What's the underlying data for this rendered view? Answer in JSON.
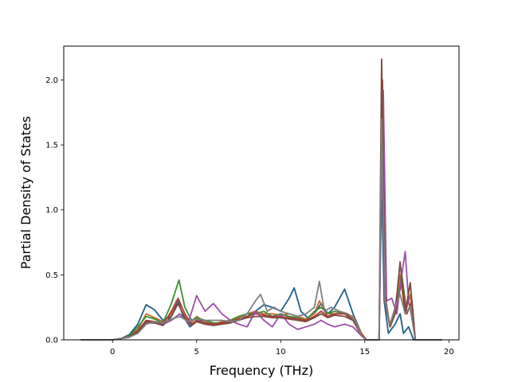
{
  "chart_data": {
    "type": "line",
    "title": "",
    "xlabel": "Frequency (THz)",
    "ylabel": "Partial Density of States",
    "xlim": [
      -2.9,
      20.6
    ],
    "ylim": [
      0,
      2.26
    ],
    "xticks": [
      0,
      5,
      10,
      15,
      20
    ],
    "xtick_labels": [
      "0",
      "5",
      "10",
      "15",
      "20"
    ],
    "yticks": [
      0.0,
      0.5,
      1.0,
      1.5,
      2.0
    ],
    "ytick_labels": [
      "0.0",
      "0.5",
      "1.0",
      "1.5",
      "2.0"
    ],
    "grid": false,
    "legend": "none",
    "series": [
      {
        "color": "#1f5f8b",
        "points": [
          [
            -1.9,
            0
          ],
          [
            0,
            0
          ],
          [
            0.5,
            0.01
          ],
          [
            1,
            0.04
          ],
          [
            1.5,
            0.12
          ],
          [
            2,
            0.27
          ],
          [
            2.5,
            0.23
          ],
          [
            3,
            0.15
          ],
          [
            3.5,
            0.18
          ],
          [
            3.9,
            0.3
          ],
          [
            4.2,
            0.18
          ],
          [
            4.6,
            0.1
          ],
          [
            5,
            0.14
          ],
          [
            5.5,
            0.15
          ],
          [
            6,
            0.13
          ],
          [
            6.5,
            0.12
          ],
          [
            7,
            0.14
          ],
          [
            7.5,
            0.16
          ],
          [
            8,
            0.18
          ],
          [
            8.5,
            0.22
          ],
          [
            9,
            0.27
          ],
          [
            9.5,
            0.25
          ],
          [
            10,
            0.22
          ],
          [
            10.5,
            0.32
          ],
          [
            10.8,
            0.4
          ],
          [
            11.2,
            0.22
          ],
          [
            11.6,
            0.17
          ],
          [
            12,
            0.2
          ],
          [
            12.4,
            0.28
          ],
          [
            12.8,
            0.2
          ],
          [
            13.2,
            0.25
          ],
          [
            13.8,
            0.39
          ],
          [
            14.3,
            0.2
          ],
          [
            14.8,
            0.05
          ],
          [
            15.1,
            0
          ],
          [
            15.85,
            0
          ],
          [
            16.0,
            1.25
          ],
          [
            16.15,
            0.3
          ],
          [
            16.4,
            0.05
          ],
          [
            16.8,
            0.12
          ],
          [
            17.1,
            0.2
          ],
          [
            17.3,
            0.05
          ],
          [
            17.6,
            0.1
          ],
          [
            17.9,
            0
          ],
          [
            19.6,
            0
          ]
        ]
      },
      {
        "color": "#c66b2a",
        "points": [
          [
            -1.9,
            0
          ],
          [
            0,
            0
          ],
          [
            0.5,
            0.01
          ],
          [
            1,
            0.03
          ],
          [
            1.5,
            0.08
          ],
          [
            2,
            0.2
          ],
          [
            2.5,
            0.17
          ],
          [
            3,
            0.14
          ],
          [
            3.5,
            0.2
          ],
          [
            3.8,
            0.3
          ],
          [
            4.2,
            0.2
          ],
          [
            4.6,
            0.12
          ],
          [
            5,
            0.18
          ],
          [
            5.5,
            0.14
          ],
          [
            6,
            0.12
          ],
          [
            6.5,
            0.14
          ],
          [
            7,
            0.15
          ],
          [
            7.5,
            0.17
          ],
          [
            8,
            0.2
          ],
          [
            8.5,
            0.22
          ],
          [
            9,
            0.2
          ],
          [
            9.5,
            0.2
          ],
          [
            10,
            0.19
          ],
          [
            10.5,
            0.2
          ],
          [
            11,
            0.18
          ],
          [
            11.5,
            0.16
          ],
          [
            12,
            0.2
          ],
          [
            12.3,
            0.3
          ],
          [
            12.7,
            0.2
          ],
          [
            13.2,
            0.2
          ],
          [
            13.8,
            0.2
          ],
          [
            14.3,
            0.18
          ],
          [
            14.8,
            0.05
          ],
          [
            15.1,
            0
          ],
          [
            15.85,
            0
          ],
          [
            16.02,
            1.6
          ],
          [
            16.2,
            0.3
          ],
          [
            16.5,
            0.1
          ],
          [
            16.8,
            0.25
          ],
          [
            17.1,
            0.5
          ],
          [
            17.4,
            0.2
          ],
          [
            17.7,
            0.35
          ],
          [
            18,
            0
          ],
          [
            19.6,
            0
          ]
        ]
      },
      {
        "color": "#3a8f2e",
        "points": [
          [
            -1.9,
            0
          ],
          [
            0,
            0
          ],
          [
            0.5,
            0.01
          ],
          [
            1,
            0.03
          ],
          [
            1.5,
            0.1
          ],
          [
            2,
            0.18
          ],
          [
            2.5,
            0.16
          ],
          [
            3,
            0.13
          ],
          [
            3.5,
            0.28
          ],
          [
            3.95,
            0.46
          ],
          [
            4.3,
            0.25
          ],
          [
            4.7,
            0.15
          ],
          [
            5,
            0.17
          ],
          [
            5.5,
            0.15
          ],
          [
            6,
            0.13
          ],
          [
            6.5,
            0.13
          ],
          [
            7,
            0.15
          ],
          [
            7.5,
            0.18
          ],
          [
            8,
            0.2
          ],
          [
            8.5,
            0.2
          ],
          [
            9,
            0.22
          ],
          [
            9.5,
            0.18
          ],
          [
            10,
            0.2
          ],
          [
            10.5,
            0.18
          ],
          [
            11,
            0.17
          ],
          [
            11.5,
            0.15
          ],
          [
            12,
            0.22
          ],
          [
            12.4,
            0.25
          ],
          [
            12.8,
            0.2
          ],
          [
            13.2,
            0.22
          ],
          [
            13.8,
            0.2
          ],
          [
            14.3,
            0.15
          ],
          [
            14.8,
            0.04
          ],
          [
            15.1,
            0
          ],
          [
            15.85,
            0
          ],
          [
            16.03,
            1.8
          ],
          [
            16.2,
            0.3
          ],
          [
            16.5,
            0.1
          ],
          [
            16.8,
            0.2
          ],
          [
            17.2,
            0.5
          ],
          [
            17.5,
            0.2
          ],
          [
            17.8,
            0.3
          ],
          [
            18,
            0
          ],
          [
            19.6,
            0
          ]
        ]
      },
      {
        "color": "#b03a3a",
        "points": [
          [
            -1.9,
            0
          ],
          [
            0,
            0
          ],
          [
            0.5,
            0.01
          ],
          [
            1,
            0.02
          ],
          [
            1.5,
            0.07
          ],
          [
            2,
            0.15
          ],
          [
            2.5,
            0.14
          ],
          [
            3,
            0.12
          ],
          [
            3.5,
            0.22
          ],
          [
            3.9,
            0.32
          ],
          [
            4.3,
            0.2
          ],
          [
            4.7,
            0.12
          ],
          [
            5,
            0.15
          ],
          [
            5.5,
            0.13
          ],
          [
            6,
            0.12
          ],
          [
            6.5,
            0.13
          ],
          [
            7,
            0.14
          ],
          [
            7.5,
            0.16
          ],
          [
            8,
            0.18
          ],
          [
            8.5,
            0.2
          ],
          [
            9,
            0.19
          ],
          [
            9.5,
            0.18
          ],
          [
            10,
            0.18
          ],
          [
            10.5,
            0.17
          ],
          [
            11,
            0.16
          ],
          [
            11.5,
            0.15
          ],
          [
            12,
            0.18
          ],
          [
            12.4,
            0.22
          ],
          [
            12.8,
            0.18
          ],
          [
            13.2,
            0.2
          ],
          [
            13.8,
            0.2
          ],
          [
            14.3,
            0.16
          ],
          [
            14.8,
            0.04
          ],
          [
            15.1,
            0
          ],
          [
            15.85,
            0
          ],
          [
            16.05,
            2.0
          ],
          [
            16.2,
            0.3
          ],
          [
            16.5,
            0.1
          ],
          [
            16.8,
            0.2
          ],
          [
            17.2,
            0.45
          ],
          [
            17.5,
            0.2
          ],
          [
            17.8,
            0.3
          ],
          [
            18,
            0
          ],
          [
            19.6,
            0
          ]
        ]
      },
      {
        "color": "#9b4fa8",
        "points": [
          [
            -1.9,
            0
          ],
          [
            0,
            0
          ],
          [
            0.5,
            0.01
          ],
          [
            1,
            0.02
          ],
          [
            1.5,
            0.06
          ],
          [
            2,
            0.13
          ],
          [
            2.5,
            0.13
          ],
          [
            3,
            0.12
          ],
          [
            3.5,
            0.15
          ],
          [
            4,
            0.2
          ],
          [
            4.5,
            0.13
          ],
          [
            5,
            0.34
          ],
          [
            5.5,
            0.22
          ],
          [
            6,
            0.28
          ],
          [
            6.5,
            0.2
          ],
          [
            7,
            0.15
          ],
          [
            7.5,
            0.12
          ],
          [
            8,
            0.1
          ],
          [
            8.5,
            0.22
          ],
          [
            9,
            0.15
          ],
          [
            9.5,
            0.1
          ],
          [
            10,
            0.2
          ],
          [
            10.5,
            0.12
          ],
          [
            11,
            0.08
          ],
          [
            11.5,
            0.1
          ],
          [
            12,
            0.12
          ],
          [
            12.4,
            0.15
          ],
          [
            12.8,
            0.12
          ],
          [
            13.2,
            0.1
          ],
          [
            13.8,
            0.12
          ],
          [
            14.3,
            0.1
          ],
          [
            14.8,
            0.03
          ],
          [
            15.1,
            0
          ],
          [
            15.85,
            0
          ],
          [
            16.1,
            1.92
          ],
          [
            16.3,
            0.3
          ],
          [
            16.6,
            0.32
          ],
          [
            16.9,
            0.2
          ],
          [
            17.2,
            0.5
          ],
          [
            17.4,
            0.68
          ],
          [
            17.6,
            0.3
          ],
          [
            17.9,
            0.1
          ],
          [
            18,
            0
          ],
          [
            19.6,
            0
          ]
        ]
      },
      {
        "color": "#7a4a3c",
        "points": [
          [
            -1.9,
            0
          ],
          [
            0,
            0
          ],
          [
            0.5,
            0.01
          ],
          [
            1,
            0.02
          ],
          [
            1.5,
            0.06
          ],
          [
            2,
            0.14
          ],
          [
            2.5,
            0.13
          ],
          [
            3,
            0.11
          ],
          [
            3.5,
            0.18
          ],
          [
            3.9,
            0.28
          ],
          [
            4.3,
            0.17
          ],
          [
            4.7,
            0.11
          ],
          [
            5,
            0.14
          ],
          [
            5.5,
            0.12
          ],
          [
            6,
            0.11
          ],
          [
            6.5,
            0.12
          ],
          [
            7,
            0.13
          ],
          [
            7.5,
            0.15
          ],
          [
            8,
            0.17
          ],
          [
            8.5,
            0.18
          ],
          [
            9,
            0.18
          ],
          [
            9.5,
            0.17
          ],
          [
            10,
            0.17
          ],
          [
            10.5,
            0.16
          ],
          [
            11,
            0.15
          ],
          [
            11.5,
            0.14
          ],
          [
            12,
            0.17
          ],
          [
            12.4,
            0.2
          ],
          [
            12.8,
            0.17
          ],
          [
            13.2,
            0.19
          ],
          [
            13.8,
            0.18
          ],
          [
            14.3,
            0.15
          ],
          [
            14.8,
            0.03
          ],
          [
            15.1,
            0
          ],
          [
            15.85,
            0
          ],
          [
            16.0,
            2.16
          ],
          [
            16.2,
            0.35
          ],
          [
            16.5,
            0.1
          ],
          [
            16.8,
            0.2
          ],
          [
            17.1,
            0.6
          ],
          [
            17.4,
            0.2
          ],
          [
            17.7,
            0.44
          ],
          [
            18,
            0
          ],
          [
            19.6,
            0
          ]
        ]
      },
      {
        "color": "#7f7f7f",
        "points": [
          [
            -1.9,
            0
          ],
          [
            0,
            0
          ],
          [
            0.5,
            0.01
          ],
          [
            1,
            0.02
          ],
          [
            1.5,
            0.05
          ],
          [
            2,
            0.12
          ],
          [
            2.5,
            0.14
          ],
          [
            3,
            0.13
          ],
          [
            3.5,
            0.16
          ],
          [
            4,
            0.18
          ],
          [
            4.5,
            0.14
          ],
          [
            5,
            0.16
          ],
          [
            5.5,
            0.15
          ],
          [
            6,
            0.15
          ],
          [
            6.5,
            0.15
          ],
          [
            7,
            0.14
          ],
          [
            7.5,
            0.15
          ],
          [
            8,
            0.2
          ],
          [
            8.5,
            0.3
          ],
          [
            8.8,
            0.35
          ],
          [
            9.2,
            0.22
          ],
          [
            9.6,
            0.25
          ],
          [
            10,
            0.22
          ],
          [
            10.5,
            0.2
          ],
          [
            11,
            0.18
          ],
          [
            11.5,
            0.2
          ],
          [
            12,
            0.25
          ],
          [
            12.3,
            0.45
          ],
          [
            12.6,
            0.22
          ],
          [
            13,
            0.25
          ],
          [
            13.5,
            0.22
          ],
          [
            14,
            0.2
          ],
          [
            14.4,
            0.15
          ],
          [
            14.8,
            0.03
          ],
          [
            15.1,
            0
          ],
          [
            15.85,
            0
          ],
          [
            16.0,
            1.7
          ],
          [
            16.2,
            0.3
          ],
          [
            16.5,
            0.12
          ],
          [
            16.8,
            0.25
          ],
          [
            17.1,
            0.35
          ],
          [
            17.4,
            0.2
          ],
          [
            17.7,
            0.25
          ],
          [
            18,
            0
          ],
          [
            19.6,
            0
          ]
        ]
      }
    ]
  }
}
